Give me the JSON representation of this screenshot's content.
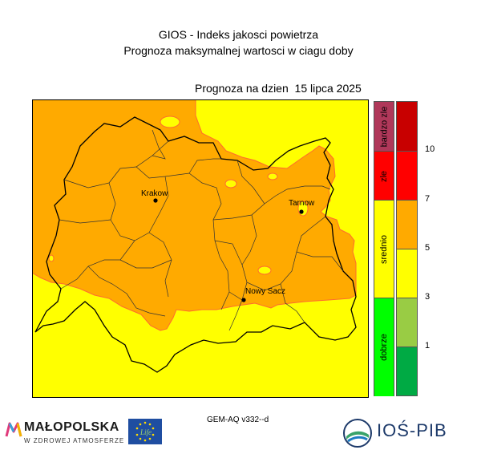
{
  "header": {
    "title_line1": "GIOS - Indeks jakosci powietrza",
    "title_line2": "Prognoza maksymalnej wartosci w ciagu doby",
    "forecast_date": "Prognoza na dzien  15 lipca 2025"
  },
  "map": {
    "cities": [
      {
        "name": "Krakow"
      },
      {
        "name": "Tarnow"
      },
      {
        "name": "Nowy Sacz"
      }
    ],
    "colors": {
      "orange_area": "#ffaa00",
      "yellow_area": "#ffff00",
      "border": "#000000"
    }
  },
  "legend": {
    "categories": [
      {
        "label": "bardzo zle",
        "color": "#b0385a"
      },
      {
        "label": "zle",
        "color": "#ff0000"
      },
      {
        "label": "srednio",
        "color": "#ffff00"
      },
      {
        "label": "dobrze",
        "color": "#00ff00"
      }
    ],
    "levels": [
      {
        "color": "#c80000"
      },
      {
        "color": "#ff0000"
      },
      {
        "color": "#ffaa00"
      },
      {
        "color": "#ffff00"
      },
      {
        "color": "#99cc44"
      },
      {
        "color": "#00aa44"
      }
    ],
    "ticks": [
      "10",
      "7",
      "5",
      "3",
      "1"
    ]
  },
  "footer": {
    "model": "GEM-AQ v332--d",
    "malopolska_name": "MAŁOPOLSKA",
    "malopolska_slogan": "W ZDROWEJ ATMOSFERZE",
    "ios_name": "IOŚ-PIB"
  }
}
